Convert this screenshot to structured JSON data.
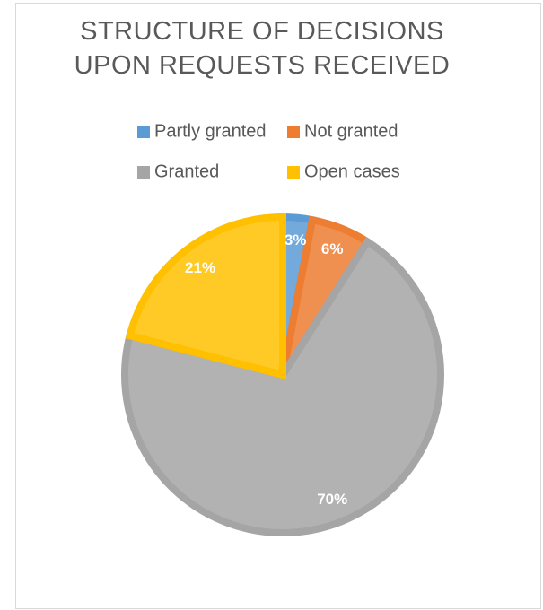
{
  "chart_data": {
    "type": "pie",
    "title": "STRUCTURE OF DECISIONS UPON REQUESTS RECEIVED",
    "categories": [
      "Partly granted",
      "Not granted",
      "Granted",
      "Open cases"
    ],
    "values": [
      3,
      6,
      70,
      21
    ],
    "value_labels": [
      "3%",
      "6%",
      "70%",
      "21%"
    ],
    "colors": [
      "#5b9bd5",
      "#ed7d31",
      "#a5a5a5",
      "#ffc000"
    ],
    "legend": "top"
  }
}
